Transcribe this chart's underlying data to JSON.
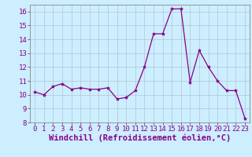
{
  "x": [
    0,
    1,
    2,
    3,
    4,
    5,
    6,
    7,
    8,
    9,
    10,
    11,
    12,
    13,
    14,
    15,
    16,
    17,
    18,
    19,
    20,
    21,
    22,
    23
  ],
  "y": [
    10.2,
    10.0,
    10.6,
    10.8,
    10.4,
    10.5,
    10.4,
    10.4,
    10.5,
    9.7,
    9.8,
    10.3,
    12.0,
    14.4,
    14.4,
    16.2,
    16.2,
    10.9,
    13.2,
    12.0,
    11.0,
    10.3,
    10.3,
    8.3
  ],
  "line_color": "#880088",
  "marker": "*",
  "marker_size": 3,
  "xlabel": "Windchill (Refroidissement éolien,°C)",
  "ylabel": "",
  "title": "",
  "ylim": [
    8,
    16.5
  ],
  "xlim": [
    -0.5,
    23.5
  ],
  "yticks": [
    8,
    9,
    10,
    11,
    12,
    13,
    14,
    15,
    16
  ],
  "xticks": [
    0,
    1,
    2,
    3,
    4,
    5,
    6,
    7,
    8,
    9,
    10,
    11,
    12,
    13,
    14,
    15,
    16,
    17,
    18,
    19,
    20,
    21,
    22,
    23
  ],
  "bg_color": "#cceeff",
  "grid_color": "#aabbcc",
  "tick_label_color": "#880088",
  "xlabel_color": "#880088",
  "tick_fontsize": 6.5,
  "xlabel_fontsize": 7.5
}
